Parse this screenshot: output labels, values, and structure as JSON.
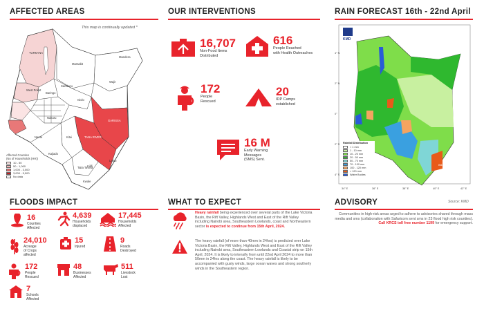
{
  "sections": {
    "affected_areas": "AFFECTED AREAS",
    "interventions": "OUR INTERVENTIONS",
    "rain_forecast": "RAIN FORECAST 16th  - 22nd April",
    "floods_impact": "FLOODS IMPACT",
    "what_to_expect": "WHAT TO EXPECT",
    "advisory": "ADVISORY"
  },
  "map_note": "This map is continually updated *",
  "map_legend": {
    "title": "Affected Counties\n(No of Households (HH))",
    "items": [
      {
        "label": "10 - 50",
        "color": "#fbe4e4"
      },
      {
        "label": "50 - 1,000",
        "color": "#f3b6b6"
      },
      {
        "label": "1,000 - 3,000",
        "color": "#e86a6a"
      },
      {
        "label": "3,000 - 5,000",
        "color": "#c51d22"
      },
      {
        "label": "No data",
        "color": "#ffffff"
      }
    ]
  },
  "map_labels": [
    "TURKANA",
    "Marsabit",
    "Mandera",
    "Wajir",
    "Samburu",
    "Isiolo",
    "GARISSA",
    "TANA RIVER",
    "Kitui",
    "Lamu",
    "Kilifi",
    "Taita Taveta",
    "Kwale",
    "Kajiado",
    "Narok",
    "Nakuru",
    "Baringo",
    "West Pokot"
  ],
  "interventions": [
    {
      "value": "16,707",
      "label": "Non-Food Items\nDistributed"
    },
    {
      "value": "616",
      "label": "People Reached\nwith Health Outreaches"
    },
    {
      "value": "172",
      "label": "People\nRescued"
    },
    {
      "value": "20",
      "label": "IDP Camps\nestablished"
    },
    {
      "value": "16 M",
      "label": "Early Warning\nMessages\n(SMS) Sent."
    }
  ],
  "rain_map": {
    "logo": "KMD",
    "legend_title": "Rainfall Distribution",
    "legend": [
      {
        "label": "< 1 mm",
        "color": "#ffffff"
      },
      {
        "label": "1 - 10 mm",
        "color": "#c8f0a0"
      },
      {
        "label": "10 - 20 mm",
        "color": "#7fdd4a"
      },
      {
        "label": "20 - 50 mm",
        "color": "#2fb82f"
      },
      {
        "label": "50 - 70 mm",
        "color": "#7fd6d6"
      },
      {
        "label": "70 - 100 mm",
        "color": "#3aa0e0"
      },
      {
        "label": "100 - 120 mm",
        "color": "#f4a460"
      },
      {
        "label": "> 120 mm",
        "color": "#e85a1a"
      },
      {
        "label": "Water Bodies",
        "color": "#2a5bd7"
      }
    ],
    "ocean_label": "INDIAN OCEAN",
    "lat_ticks": [
      "4° N",
      "2° N",
      "0°",
      "2° S",
      "4° S"
    ],
    "lon_ticks": [
      "34° E",
      "36° E",
      "38° E",
      "40° E",
      "42° E"
    ],
    "source": "Source: KMD"
  },
  "floods": [
    {
      "value": "16",
      "label": "Counties\nAffected"
    },
    {
      "value": "4,639",
      "label": "Households\ndisplaced"
    },
    {
      "value": "17,445",
      "label": "Households\nAffected"
    },
    {
      "value": "24,010",
      "label": "Acreage\nof Crops\naffected"
    },
    {
      "value": "15",
      "label": "Injured"
    },
    {
      "value": "9",
      "label": "Roads\nDestroyed"
    },
    {
      "value": "172",
      "label": "People\nRescued"
    },
    {
      "value": "48",
      "label": "Businesses\nAffected"
    },
    {
      "value": "511",
      "label": "Livestock\nLost"
    },
    {
      "value": "7",
      "label": "Schools\nAffected"
    }
  ],
  "expect": {
    "p1_lead": "Heavy rainfall",
    "p1_body": " being experienced over several parts of the Lake Victoria Basin, the Rift Valley, Highlands West and East of the Rift Valley including Nairobi area, Southeastern Lowlands, coast and Northeastern sector ",
    "p1_tail": "is expected to continue from 15th April, 2024.",
    "p2": "The heavy rainfall (of more than 40mm in 24hrs) is predicted over Lake Victoria Basin, the Rift Valley, Highlands West and East of the Rift Valley including Nairobi area, Southeastern Lowlands and Coastal strip on 15th April, 2024. It is likely to intensify from until 22nd April 2024 to more than 50mm in 24hrs along the coast. The heavy rainfall is likely to be accompanied with gusty winds, large ocean waves and strong southerly winds in the Southeastern region."
  },
  "advisory": {
    "body": "Communities in high-risk areas urged to adhere to advisories shared through mass media and sms (collaboration with Safaricom sent sms in 23 flood high risk counties). ",
    "call": "Call KRCS toll free number 1199",
    "tail": " for emergency support."
  }
}
